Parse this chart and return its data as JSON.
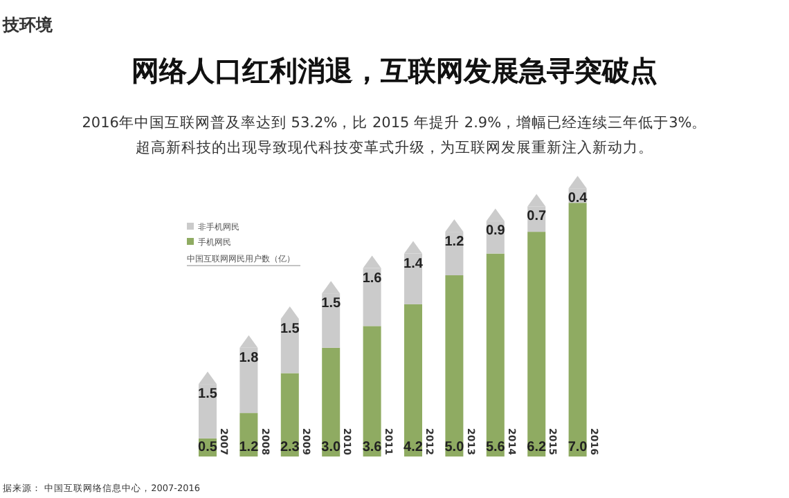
{
  "chart_data": {
    "type": "bar",
    "stacked": true,
    "legend": "top left",
    "title": "网络人口红利消退，互联网发展急寻突破点",
    "subtitle": "2016年中国互联网普及率达到 53.2%，比 2015 年提升 2.9%，增幅已经连续三年低于3%。",
    "legend_title": "中国互联网网民用户数（亿）",
    "annotations": [
      "技环境",
      "超高新科技的出现导致现代科技变革式升级，为互联网发展重新注入新动力。",
      "据来源： 中国互联网络信息中心，2007-2016"
    ],
    "categories": [
      "2007",
      "2008",
      "2009",
      "2010",
      "2011",
      "2012",
      "2013",
      "2014",
      "2015",
      "2016"
    ],
    "series": [
      {
        "name": "手机网民",
        "color": "#8fab62",
        "values": [
          0.5,
          1.2,
          2.3,
          3.0,
          3.6,
          4.2,
          5.0,
          5.6,
          6.2,
          7.0
        ],
        "value_labels": [
          "0.5",
          "1.2",
          "2.3",
          "3.0",
          "3.6",
          "4.2",
          "5.0",
          "5.6",
          "6.2",
          "7.0"
        ]
      },
      {
        "name": "非手机网民",
        "color": "#cbcbcb",
        "values": [
          1.5,
          1.8,
          1.5,
          1.5,
          1.6,
          1.4,
          1.2,
          0.9,
          0.7,
          0.4
        ],
        "value_labels": [
          "1.5",
          "1.8",
          "1.5",
          "1.5",
          "1.6",
          "1.4",
          "1.2",
          "0.9",
          "0.7",
          "0.4"
        ]
      }
    ]
  }
}
